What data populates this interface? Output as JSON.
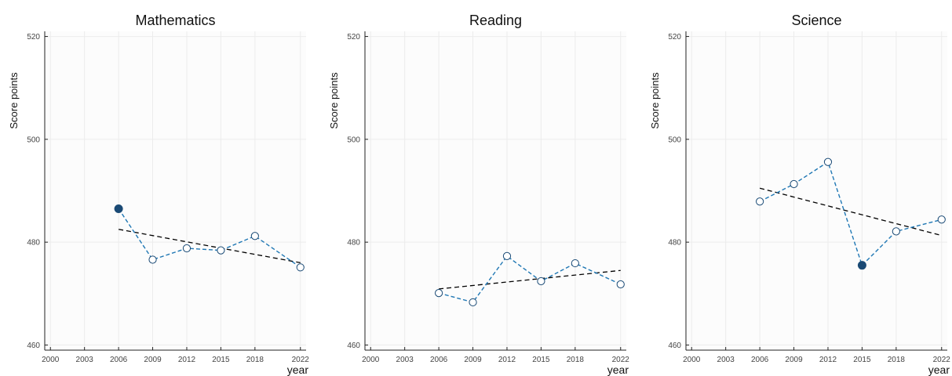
{
  "chart_data": [
    {
      "type": "line",
      "title": "Mathematics",
      "xlabel": "year",
      "ylabel": "Score points",
      "xlim": [
        1999.5,
        2022.5
      ],
      "ylim": [
        459,
        521
      ],
      "x_ticks": [
        2000,
        2003,
        2006,
        2009,
        2012,
        2015,
        2018,
        2022
      ],
      "y_ticks": [
        460,
        480,
        500,
        520
      ],
      "grid": true,
      "series": [
        {
          "style": "dashed-markers",
          "color": "#1f77b4",
          "x": [
            2006,
            2009,
            2012,
            2015,
            2018,
            2022
          ],
          "values": [
            486.5,
            476.6,
            478.8,
            478.4,
            481.2,
            475.1
          ],
          "filled_marker_index": 0
        }
      ],
      "trend": {
        "color": "#000000",
        "x": [
          2006,
          2022
        ],
        "values": [
          482.5,
          476.0
        ]
      }
    },
    {
      "type": "line",
      "title": "Reading",
      "xlabel": "year",
      "ylabel": "Score points",
      "xlim": [
        1999.5,
        2022.5
      ],
      "ylim": [
        459,
        521
      ],
      "x_ticks": [
        2000,
        2003,
        2006,
        2009,
        2012,
        2015,
        2018,
        2022
      ],
      "y_ticks": [
        460,
        480,
        500,
        520
      ],
      "grid": true,
      "series": [
        {
          "style": "dashed-markers",
          "color": "#1f77b4",
          "x": [
            2006,
            2009,
            2012,
            2015,
            2018,
            2022
          ],
          "values": [
            470.1,
            468.3,
            477.3,
            472.4,
            475.9,
            471.8
          ],
          "filled_marker_index": null
        }
      ],
      "trend": {
        "color": "#000000",
        "x": [
          2006,
          2022
        ],
        "values": [
          470.9,
          474.5
        ]
      }
    },
    {
      "type": "line",
      "title": "Science",
      "xlabel": "year",
      "ylabel": "Score points",
      "xlim": [
        1999.5,
        2022.5
      ],
      "ylim": [
        459,
        521
      ],
      "x_ticks": [
        2000,
        2003,
        2006,
        2009,
        2012,
        2015,
        2018,
        2022
      ],
      "y_ticks": [
        460,
        480,
        500,
        520
      ],
      "grid": true,
      "series": [
        {
          "style": "dashed-markers",
          "color": "#1f77b4",
          "x": [
            2006,
            2009,
            2012,
            2015,
            2018,
            2022
          ],
          "values": [
            487.9,
            491.3,
            495.6,
            475.5,
            482.1,
            484.4
          ],
          "filled_marker_index": 3
        }
      ],
      "trend": {
        "color": "#000000",
        "x": [
          2006,
          2022
        ],
        "values": [
          490.5,
          481.3
        ]
      }
    }
  ]
}
